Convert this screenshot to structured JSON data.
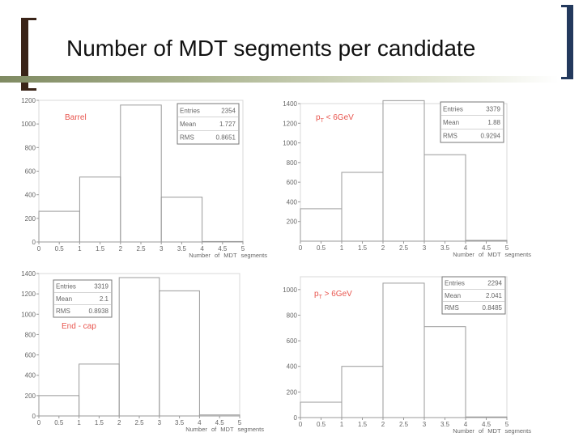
{
  "slide": {
    "title": "Number of MDT segments per candidate"
  },
  "colors": {
    "histogram_line": "#9a9a9a",
    "label_red": "#e8554e",
    "axis_text": "#666666",
    "title_bar": "#9aa37a"
  },
  "chart_data": [
    {
      "type": "bar",
      "subtype": "histogram",
      "label": "Barrel",
      "xlabel": "Number of MDT segments",
      "bin_edges": [
        0,
        1,
        2,
        3,
        4,
        5
      ],
      "values": [
        260,
        550,
        1160,
        380,
        4
      ],
      "xlim": [
        0,
        5
      ],
      "ylim": [
        0,
        1200
      ],
      "xticks": [
        "0",
        "0.5",
        "1",
        "1.5",
        "2",
        "2.5",
        "3",
        "3.5",
        "4",
        "4.5",
        "5"
      ],
      "yticks": [
        "0",
        "200",
        "400",
        "600",
        "800",
        "1000",
        "1200"
      ],
      "stats": [
        {
          "name": "Entries",
          "value": "2354"
        },
        {
          "name": "Mean",
          "value": "1.727"
        },
        {
          "name": "RMS",
          "value": "0.8651"
        }
      ]
    },
    {
      "type": "bar",
      "subtype": "histogram",
      "label_parts": [
        "p",
        "T",
        "  <  6GeV"
      ],
      "xlabel": "Number of MDT segments",
      "bin_edges": [
        0,
        1,
        2,
        3,
        4,
        5
      ],
      "values": [
        330,
        700,
        1430,
        880,
        8
      ],
      "xlim": [
        0,
        5
      ],
      "ylim": [
        0,
        1400
      ],
      "xticks": [
        "0",
        "0.5",
        "1",
        "1.5",
        "2",
        "2.5",
        "3",
        "3.5",
        "4",
        "4.5",
        "5"
      ],
      "yticks": [
        "200",
        "400",
        "600",
        "800",
        "1000",
        "1200",
        "1400"
      ],
      "stats": [
        {
          "name": "Entries",
          "value": "3379"
        },
        {
          "name": "Mean",
          "value": "1.88"
        },
        {
          "name": "RMS",
          "value": "0.9294"
        }
      ]
    },
    {
      "type": "bar",
      "subtype": "histogram",
      "label": "End  -  cap",
      "xlabel": "Number of MDT segments",
      "bin_edges": [
        0,
        1,
        2,
        3,
        4,
        5
      ],
      "values": [
        200,
        510,
        1360,
        1230,
        10
      ],
      "xlim": [
        0,
        5
      ],
      "ylim": [
        0,
        1400
      ],
      "xticks": [
        "0",
        "0.5",
        "1",
        "1.5",
        "2",
        "2.5",
        "3",
        "3.5",
        "4",
        "4.5",
        "5"
      ],
      "yticks": [
        "0",
        "200",
        "400",
        "600",
        "800",
        "1000",
        "1200",
        "1400"
      ],
      "stats": [
        {
          "name": "Entries",
          "value": "3319"
        },
        {
          "name": "Mean",
          "value": "2.1"
        },
        {
          "name": "RMS",
          "value": "0.8938"
        }
      ]
    },
    {
      "type": "bar",
      "subtype": "histogram",
      "label_parts": [
        "p",
        "T",
        "  >  6GeV"
      ],
      "xlabel": "Number of MDT segments",
      "bin_edges": [
        0,
        1,
        2,
        3,
        4,
        5
      ],
      "values": [
        120,
        400,
        1050,
        710,
        5
      ],
      "xlim": [
        0,
        5
      ],
      "ylim": [
        0,
        1100
      ],
      "xticks": [
        "0",
        "0.5",
        "1",
        "1.5",
        "2",
        "2.5",
        "3",
        "3.5",
        "4",
        "4.5",
        "5"
      ],
      "yticks": [
        "0",
        "200",
        "400",
        "600",
        "800",
        "1000"
      ],
      "stats": [
        {
          "name": "Entries",
          "value": "2294"
        },
        {
          "name": "Mean",
          "value": "2.041"
        },
        {
          "name": "RMS",
          "value": "0.8485"
        }
      ]
    }
  ]
}
